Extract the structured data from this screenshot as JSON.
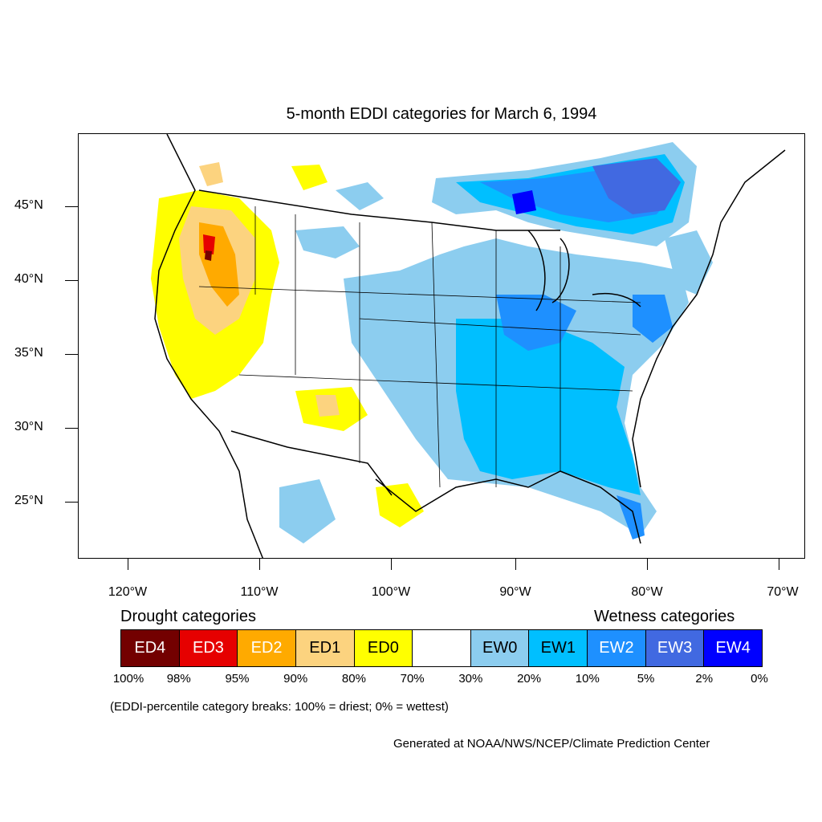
{
  "title": "5-month EDDI categories for March 6, 1994",
  "lat_labels": [
    "45°N",
    "40°N",
    "35°N",
    "30°N",
    "25°N"
  ],
  "lon_labels": [
    "120°W",
    "110°W",
    "100°W",
    "90°W",
    "80°W",
    "70°W"
  ],
  "legend": {
    "drought_title": "Drought categories",
    "wetness_title": "Wetness categories",
    "categories": [
      {
        "label": "ED4",
        "color": "#730000",
        "text_color": "#ffffff"
      },
      {
        "label": "ED3",
        "color": "#e60000",
        "text_color": "#ffffff"
      },
      {
        "label": "ED2",
        "color": "#ffaa00",
        "text_color": "#ffffff"
      },
      {
        "label": "ED1",
        "color": "#fcd37f",
        "text_color": "#000000"
      },
      {
        "label": "ED0",
        "color": "#ffff00",
        "text_color": "#000000"
      },
      {
        "label": "",
        "color": "#ffffff",
        "text_color": "#000000"
      },
      {
        "label": "EW0",
        "color": "#8ccdef",
        "text_color": "#000000"
      },
      {
        "label": "EW1",
        "color": "#00bfff",
        "text_color": "#000000"
      },
      {
        "label": "EW2",
        "color": "#1e90ff",
        "text_color": "#ffffff"
      },
      {
        "label": "EW3",
        "color": "#4169e1",
        "text_color": "#ffffff"
      },
      {
        "label": "EW4",
        "color": "#0000ff",
        "text_color": "#ffffff"
      }
    ],
    "breaks": [
      "100%",
      "98%",
      "95%",
      "90%",
      "80%",
      "70%",
      "30%",
      "20%",
      "10%",
      "5%",
      "2%",
      "0%"
    ]
  },
  "note": "(EDDI-percentile category breaks: 100% = driest; 0% = wettest)",
  "credit": "Generated at NOAA/NWS/NCEP/Climate Prediction Center"
}
